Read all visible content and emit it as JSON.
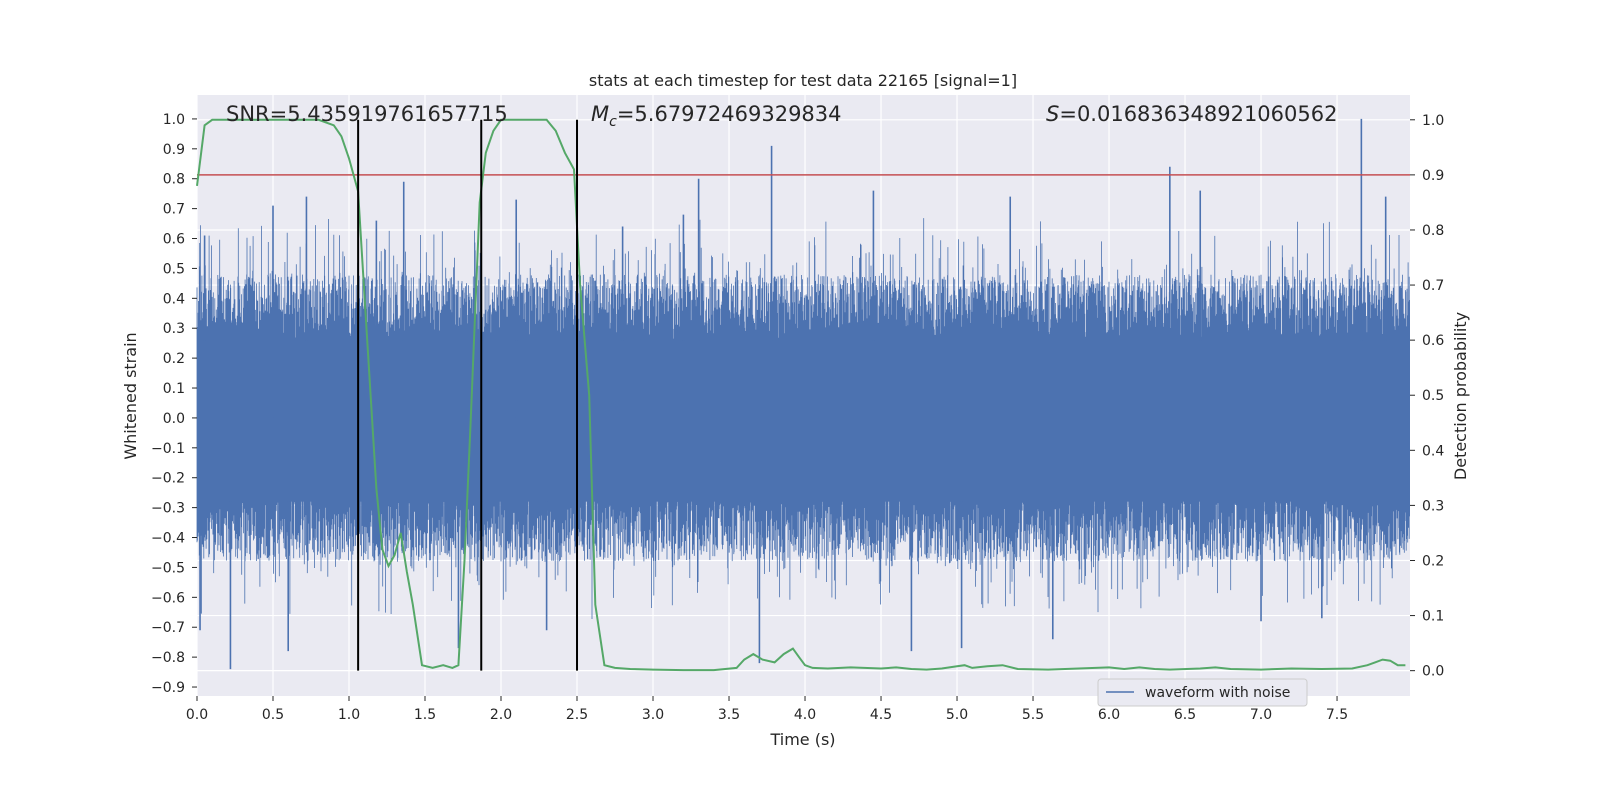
{
  "chart_data": {
    "type": "line",
    "title": "stats at each timestep for test data 22165 [signal=1]",
    "xlabel": "Time (s)",
    "ylabel_left": "Whitened strain",
    "ylabel_right": "Detection probability",
    "xlim": [
      0,
      7.98
    ],
    "ylim_left": [
      -0.93,
      1.08
    ],
    "ylim_right": [
      -0.046,
      1.045
    ],
    "x_ticks": [
      "0.0",
      "0.5",
      "1.0",
      "1.5",
      "2.0",
      "2.5",
      "3.0",
      "3.5",
      "4.0",
      "4.5",
      "5.0",
      "5.5",
      "6.0",
      "6.5",
      "7.0",
      "7.5"
    ],
    "y_left_ticks": [
      "-0.9",
      "-0.8",
      "-0.7",
      "-0.6",
      "-0.5",
      "-0.4",
      "-0.3",
      "-0.2",
      "-0.1",
      "0.0",
      "0.1",
      "0.2",
      "0.3",
      "0.4",
      "0.5",
      "0.6",
      "0.7",
      "0.8",
      "0.9",
      "1.0"
    ],
    "y_right_ticks": [
      "0.0",
      "0.1",
      "0.2",
      "0.3",
      "0.4",
      "0.5",
      "0.6",
      "0.7",
      "0.8",
      "0.9",
      "1.0"
    ],
    "grid": true,
    "legend_position": "lower-right",
    "annotations": {
      "snr": "SNR=5.435919761657715",
      "mc_symbol": "M",
      "mc_sub": "c",
      "mc_value": "=5.67972469329834",
      "s_symbol": "S",
      "s_value": "=0.016836348921060562"
    },
    "series": [
      {
        "name": "waveform with noise",
        "color": "#4c72b0",
        "axis": "left",
        "peak_points": [
          {
            "x": 0.02,
            "y": -0.71
          },
          {
            "x": 0.05,
            "y": 0.61
          },
          {
            "x": 0.22,
            "y": -0.84
          },
          {
            "x": 0.5,
            "y": 0.71
          },
          {
            "x": 0.6,
            "y": -0.78
          },
          {
            "x": 0.72,
            "y": 0.74
          },
          {
            "x": 1.18,
            "y": 0.66
          },
          {
            "x": 1.36,
            "y": 0.79
          },
          {
            "x": 1.72,
            "y": -0.77
          },
          {
            "x": 2.1,
            "y": 0.73
          },
          {
            "x": 2.3,
            "y": -0.71
          },
          {
            "x": 2.5,
            "y": 0.66
          },
          {
            "x": 2.8,
            "y": 0.64
          },
          {
            "x": 3.2,
            "y": 0.68
          },
          {
            "x": 3.3,
            "y": 0.8
          },
          {
            "x": 3.7,
            "y": -0.82
          },
          {
            "x": 3.78,
            "y": 0.91
          },
          {
            "x": 4.45,
            "y": 0.76
          },
          {
            "x": 4.7,
            "y": -0.78
          },
          {
            "x": 5.03,
            "y": -0.77
          },
          {
            "x": 5.35,
            "y": 0.74
          },
          {
            "x": 5.63,
            "y": -0.74
          },
          {
            "x": 6.4,
            "y": 0.84
          },
          {
            "x": 6.6,
            "y": 0.76
          },
          {
            "x": 7.0,
            "y": -0.68
          },
          {
            "x": 7.4,
            "y": -0.67
          },
          {
            "x": 7.66,
            "y": 1.0
          },
          {
            "x": 7.82,
            "y": 0.74
          }
        ]
      },
      {
        "name": "",
        "color": "#55a868",
        "axis": "right",
        "x": [
          0.0,
          0.05,
          0.1,
          0.2,
          0.3,
          0.4,
          0.5,
          0.6,
          0.7,
          0.8,
          0.9,
          0.95,
          1.0,
          1.06,
          1.12,
          1.18,
          1.22,
          1.26,
          1.3,
          1.34,
          1.38,
          1.42,
          1.48,
          1.55,
          1.62,
          1.68,
          1.72,
          1.76,
          1.8,
          1.86,
          1.9,
          1.95,
          2.0,
          2.05,
          2.1,
          2.2,
          2.3,
          2.36,
          2.42,
          2.48,
          2.52,
          2.58,
          2.62,
          2.68,
          2.75,
          2.85,
          3.0,
          3.2,
          3.4,
          3.55,
          3.6,
          3.66,
          3.72,
          3.8,
          3.86,
          3.92,
          3.96,
          4.0,
          4.05,
          4.15,
          4.3,
          4.5,
          4.6,
          4.7,
          4.8,
          4.9,
          5.0,
          5.05,
          5.1,
          5.2,
          5.3,
          5.4,
          5.6,
          5.8,
          6.0,
          6.1,
          6.2,
          6.3,
          6.4,
          6.6,
          6.7,
          6.8,
          7.0,
          7.2,
          7.4,
          7.6,
          7.7,
          7.75,
          7.8,
          7.85,
          7.9,
          7.95
        ],
        "values": [
          0.88,
          0.99,
          1.0,
          1.0,
          1.0,
          1.0,
          1.0,
          1.0,
          1.0,
          1.0,
          0.99,
          0.97,
          0.93,
          0.87,
          0.6,
          0.33,
          0.22,
          0.19,
          0.21,
          0.25,
          0.18,
          0.12,
          0.01,
          0.005,
          0.01,
          0.005,
          0.01,
          0.2,
          0.45,
          0.85,
          0.94,
          0.98,
          1.0,
          1.0,
          1.0,
          1.0,
          1.0,
          0.98,
          0.94,
          0.91,
          0.7,
          0.5,
          0.12,
          0.01,
          0.005,
          0.003,
          0.002,
          0.001,
          0.001,
          0.005,
          0.02,
          0.03,
          0.02,
          0.015,
          0.03,
          0.04,
          0.025,
          0.01,
          0.005,
          0.004,
          0.006,
          0.004,
          0.006,
          0.003,
          0.002,
          0.004,
          0.008,
          0.01,
          0.005,
          0.008,
          0.01,
          0.003,
          0.002,
          0.004,
          0.006,
          0.003,
          0.006,
          0.003,
          0.002,
          0.004,
          0.006,
          0.003,
          0.002,
          0.004,
          0.003,
          0.004,
          0.01,
          0.015,
          0.02,
          0.018,
          0.01,
          0.01
        ]
      }
    ],
    "threshold_line": {
      "y": 0.9,
      "axis": "right",
      "color": "#c44e52"
    },
    "vertical_lines": {
      "x": [
        1.06,
        1.87,
        2.5
      ],
      "color": "#000000"
    }
  }
}
